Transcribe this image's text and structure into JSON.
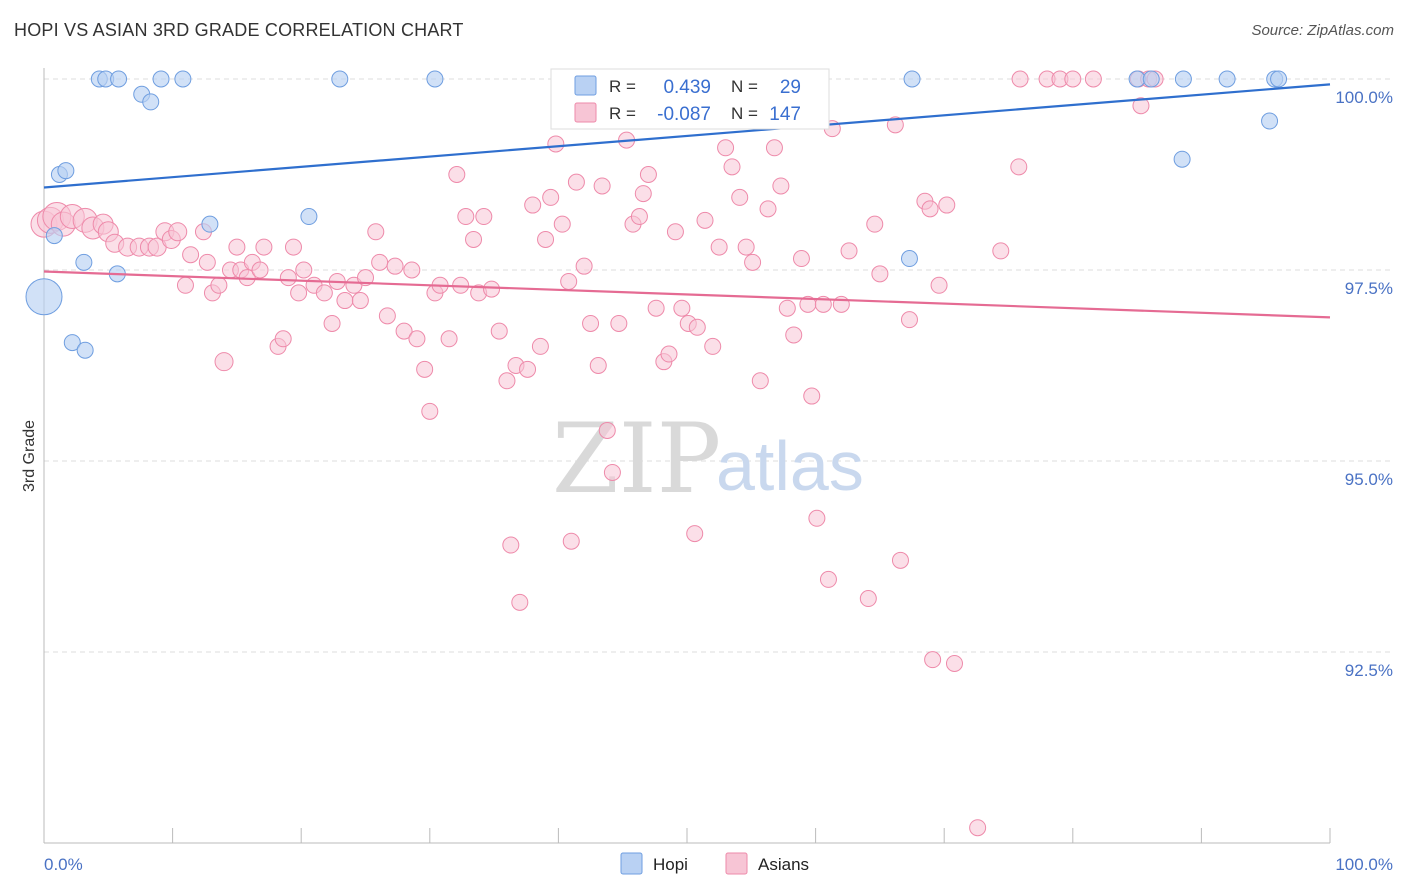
{
  "header": {
    "title": "HOPI VS ASIAN 3RD GRADE CORRELATION CHART",
    "source": "Source: ZipAtlas.com"
  },
  "watermark": {
    "zip": "ZIP",
    "atlas": "atlas"
  },
  "colors": {
    "hopi": "#6f9ee0",
    "hopi_fill": "#b9d1f3",
    "asians": "#ee8aaa",
    "asians_fill": "#f7c5d5",
    "hopi_line": "#2f6fce",
    "asians_line": "#e56b93",
    "tick_label": "#4a72c4"
  },
  "stats": {
    "r_label": "R =",
    "n_label": "N =",
    "hopi": {
      "r": "0.439",
      "n": "29"
    },
    "asians": {
      "r": "-0.087",
      "n": "147"
    }
  },
  "chart_data": {
    "type": "scatter",
    "title": "HOPI VS ASIAN 3RD GRADE CORRELATION CHART",
    "xlabel": "",
    "ylabel": "3rd Grade",
    "xlim": [
      0,
      100
    ],
    "ylim": [
      89.7,
      100.4
    ],
    "x_tick_labels": {
      "left": "0.0%",
      "right": "100.0%"
    },
    "y_ticks": [
      {
        "value": 100.0,
        "label": "100.0%"
      },
      {
        "value": 97.5,
        "label": "97.5%"
      },
      {
        "value": 95.0,
        "label": "95.0%"
      },
      {
        "value": 92.5,
        "label": "92.5%"
      }
    ],
    "legend_position": "top-center",
    "grid": "horizontal dashed",
    "series": [
      {
        "name": "Hopi",
        "trend": {
          "x": [
            0,
            100
          ],
          "y": [
            98.58,
            99.93
          ]
        },
        "points": [
          [
            0.0,
            97.15,
            18
          ],
          [
            0.8,
            97.95,
            8
          ],
          [
            1.2,
            98.75,
            8
          ],
          [
            1.7,
            98.8,
            8
          ],
          [
            2.2,
            96.55,
            8
          ],
          [
            3.1,
            97.6,
            8
          ],
          [
            3.2,
            96.45,
            8
          ],
          [
            4.1,
            97.45,
            8
          ],
          [
            4.3,
            100.0,
            8
          ],
          [
            4.8,
            100.0,
            8
          ],
          [
            5.8,
            100.0,
            8
          ],
          [
            7.6,
            99.8,
            8
          ],
          [
            8.3,
            99.7,
            8
          ],
          [
            9.1,
            100.0,
            8
          ],
          [
            10.8,
            100.0,
            8
          ],
          [
            12.9,
            98.1,
            8
          ],
          [
            20.6,
            98.2,
            8
          ],
          [
            23.0,
            100.0,
            8
          ],
          [
            30.4,
            100.0,
            8
          ],
          [
            56.6,
            100.0,
            8
          ],
          [
            56.8,
            100.0,
            8
          ],
          [
            67.3,
            97.65,
            8
          ],
          [
            67.5,
            97.65,
            8
          ],
          [
            67.6,
            97.65,
            8
          ],
          [
            67.8,
            97.65,
            8
          ],
          [
            67.9,
            97.65,
            8
          ],
          [
            68.0,
            97.65,
            8
          ],
          [
            68.1,
            97.65,
            8
          ],
          [
            68.2,
            97.65,
            8
          ]
        ]
      },
      {
        "name": "Asians",
        "trend": {
          "x": [
            0,
            100
          ],
          "y": [
            97.48,
            96.88
          ]
        },
        "points": []
      }
    ]
  },
  "legend": {
    "hopi": "Hopi",
    "asians": "Asians"
  }
}
